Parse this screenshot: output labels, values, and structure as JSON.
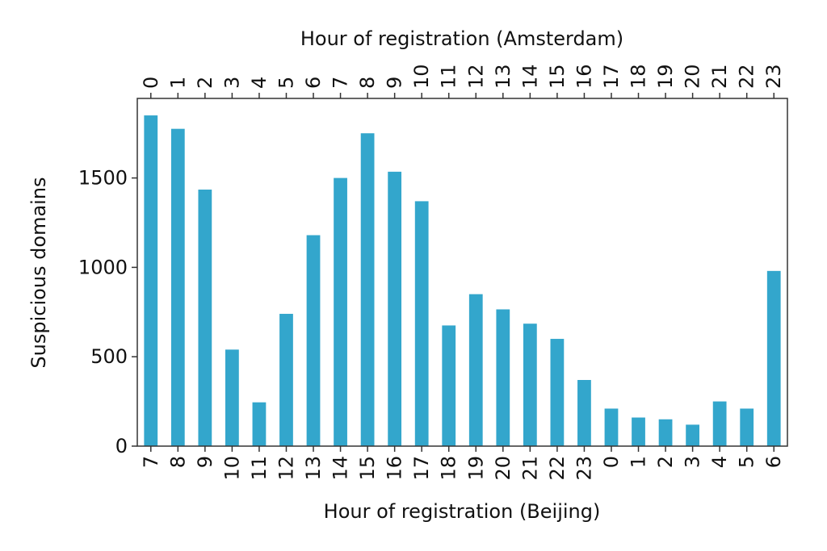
{
  "chart_data": {
    "type": "bar",
    "xlabel": "Hour of registration (Beijing)",
    "x2label": "Hour of registration (Amsterdam)",
    "ylabel": "Suspicious domains",
    "categories": [
      "7",
      "8",
      "9",
      "10",
      "11",
      "12",
      "13",
      "14",
      "15",
      "16",
      "17",
      "18",
      "19",
      "20",
      "21",
      "22",
      "23",
      "0",
      "1",
      "2",
      "3",
      "4",
      "5",
      "6"
    ],
    "top_categories": [
      "0",
      "1",
      "2",
      "3",
      "4",
      "5",
      "6",
      "7",
      "8",
      "9",
      "10",
      "11",
      "12",
      "13",
      "14",
      "15",
      "16",
      "17",
      "18",
      "19",
      "20",
      "21",
      "22",
      "23"
    ],
    "values": [
      1850,
      1775,
      1435,
      540,
      245,
      740,
      1180,
      1500,
      1750,
      1535,
      1370,
      675,
      850,
      765,
      685,
      600,
      370,
      210,
      160,
      150,
      120,
      250,
      210,
      980
    ],
    "color": "#33a6cc",
    "ylim": [
      0,
      1945
    ],
    "yticks": [
      0,
      500,
      1000,
      1500
    ]
  }
}
